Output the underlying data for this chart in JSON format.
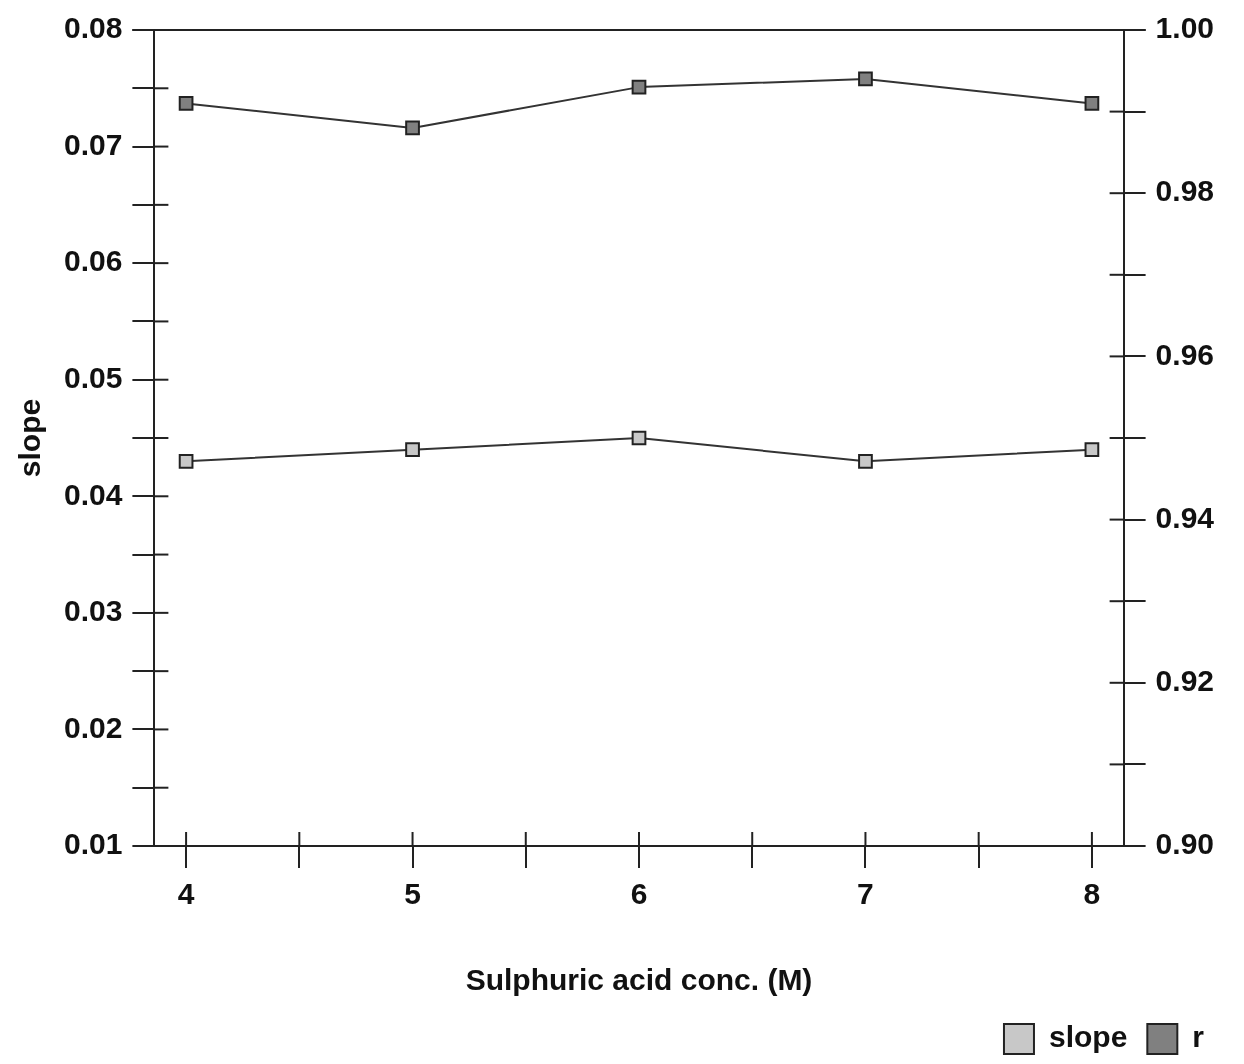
{
  "chart_data": {
    "type": "line",
    "xlabel": "Sulphuric acid conc. (M)",
    "ylabel": "slope",
    "x": [
      4,
      5,
      6,
      7,
      8
    ],
    "xlim": [
      3.86,
      8.14
    ],
    "xticks": [
      4,
      {
        "value": 4.5,
        "label": null
      },
      5,
      {
        "value": 5.5,
        "label": null
      },
      6,
      {
        "value": 6.5,
        "label": null
      },
      7,
      {
        "value": 7.5,
        "label": null
      },
      8
    ],
    "ylim": [
      0.01,
      0.08
    ],
    "yticks": [
      0.01,
      {
        "value": 0.015,
        "label": null
      },
      0.02,
      {
        "value": 0.025,
        "label": null
      },
      0.03,
      {
        "value": 0.035,
        "label": null
      },
      0.04,
      {
        "value": 0.045,
        "label": null
      },
      0.05,
      {
        "value": 0.055,
        "label": null
      },
      0.06,
      {
        "value": 0.065,
        "label": null
      },
      0.07,
      {
        "value": 0.075,
        "label": null
      },
      0.08
    ],
    "y2lim": [
      0.9,
      1.0
    ],
    "y2ticks": [
      {
        "value": 0.9,
        "label": "0.90"
      },
      {
        "value": 0.91,
        "label": null
      },
      {
        "value": 0.92,
        "label": "0.92"
      },
      {
        "value": 0.93,
        "label": null
      },
      {
        "value": 0.94,
        "label": "0.94"
      },
      {
        "value": 0.95,
        "label": null
      },
      {
        "value": 0.96,
        "label": "0.96"
      },
      {
        "value": 0.97,
        "label": null
      },
      {
        "value": 0.98,
        "label": "0.98"
      },
      {
        "value": 0.99,
        "label": null
      },
      {
        "value": 1.0,
        "label": "1.00"
      }
    ],
    "series": [
      {
        "name": "slope",
        "color": "#c8c8c8",
        "values": [
          0.043,
          0.044,
          0.045,
          0.043,
          0.044
        ]
      },
      {
        "name": "r",
        "color": "#808080",
        "axis": "y2",
        "values": [
          0.991,
          0.988,
          0.993,
          0.994,
          0.991
        ]
      }
    ],
    "marker": "square",
    "line_style": "solid",
    "legend": "bottom right",
    "grid": false
  }
}
